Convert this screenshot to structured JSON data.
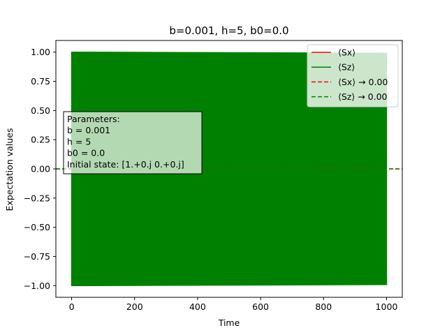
{
  "chart_data": {
    "type": "line",
    "title": "b=0.001, h=5, b0=0.0",
    "xlabel": "Time",
    "ylabel": "Expectation values",
    "xlim": [
      -50,
      1050
    ],
    "ylim": [
      -1.1,
      1.1
    ],
    "xticks": [
      0,
      200,
      400,
      600,
      800,
      1000
    ],
    "xtick_labels": [
      "0",
      "200",
      "400",
      "600",
      "800",
      "1000"
    ],
    "yticks": [
      -1.0,
      -0.75,
      -0.5,
      -0.25,
      0.0,
      0.25,
      0.5,
      0.75,
      1.0
    ],
    "ytick_labels": [
      "−1.00",
      "−0.75",
      "−0.50",
      "−0.25",
      "0.00",
      "0.25",
      "0.50",
      "0.75",
      "1.00"
    ],
    "grid": false,
    "legend_position": "top-right",
    "series": [
      {
        "name": "⟨Sx⟩",
        "color": "#ff0000",
        "style": "solid",
        "x_range": [
          0,
          1000
        ],
        "value": 0.0
      },
      {
        "name": "⟨Sz⟩",
        "color": "#008000",
        "style": "solid",
        "x_range": [
          0,
          1000
        ],
        "oscillation_min": -1.0,
        "oscillation_max": 1.0
      },
      {
        "name": "⟨Sx⟩ → 0.00",
        "color": "#ff0000",
        "style": "dashed",
        "value": 0.0
      },
      {
        "name": "⟨Sz⟩ → 0.00",
        "color": "#008000",
        "style": "dashed",
        "value": 0.0
      }
    ],
    "annotation": {
      "lines": [
        "Parameters:",
        "b = 0.001",
        "h = 5",
        "b0 = 0.0",
        "Initial state: [1.+0.j 0.+0.j]"
      ]
    }
  }
}
